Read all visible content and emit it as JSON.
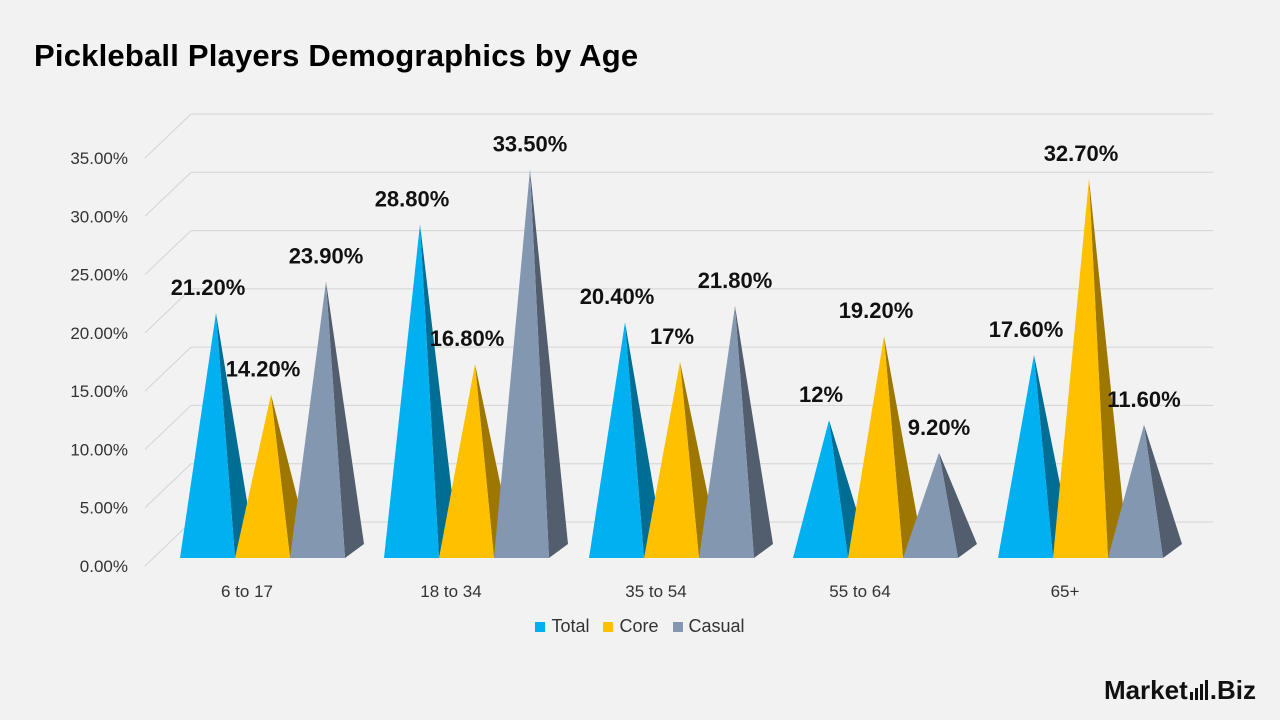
{
  "title": "Pickleball Players Demographics by Age",
  "brand": {
    "name": "Market",
    "suffix": ".Biz"
  },
  "colors": {
    "Total": "#00b0f0",
    "Core": "#ffc000",
    "Casual": "#8497b0"
  },
  "chart_data": {
    "type": "bar",
    "style": "3d-cone",
    "title": "Pickleball Players Demographics by Age",
    "categories": [
      "6 to 17",
      "18 to 34",
      "35 to 54",
      "55 to 64",
      "65+"
    ],
    "series": [
      {
        "name": "Total",
        "values": [
          21.2,
          28.8,
          20.4,
          12,
          17.6
        ],
        "labels": [
          "21.20%",
          "28.80%",
          "20.40%",
          "12%",
          "17.60%"
        ]
      },
      {
        "name": "Core",
        "values": [
          14.2,
          16.8,
          17,
          19.2,
          32.7
        ],
        "labels": [
          "14.20%",
          "16.80%",
          "17%",
          "19.20%",
          "32.70%"
        ]
      },
      {
        "name": "Casual",
        "values": [
          23.9,
          33.5,
          21.8,
          9.2,
          11.6
        ],
        "labels": [
          "23.90%",
          "33.50%",
          "21.80%",
          "9.20%",
          "11.60%"
        ]
      }
    ],
    "yticks": [
      "0.00%",
      "5.00%",
      "10.00%",
      "15.00%",
      "20.00%",
      "25.00%",
      "30.00%",
      "35.00%"
    ],
    "ylim": [
      0,
      35
    ],
    "grid": true,
    "legend": "bottom"
  }
}
